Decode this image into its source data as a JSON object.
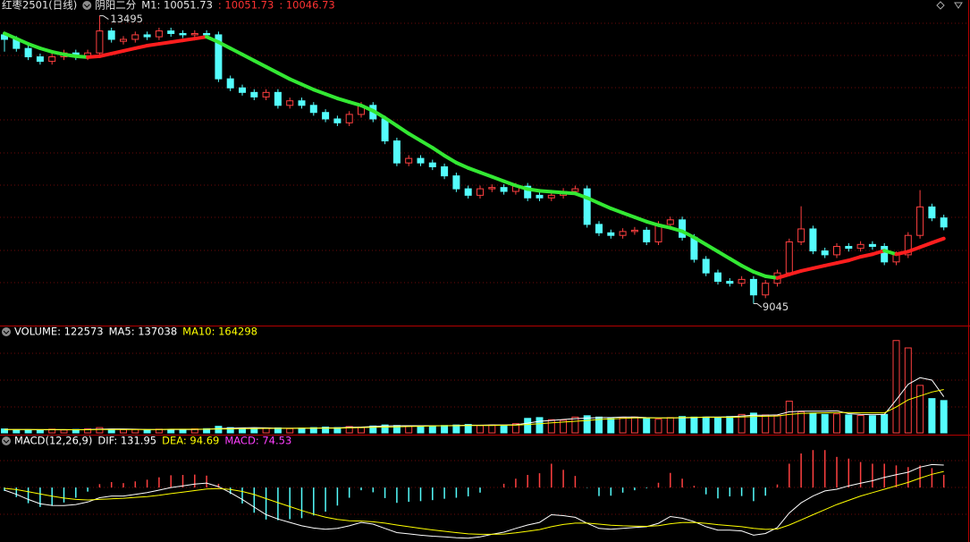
{
  "header": {
    "symbol": "红枣2501(日线)",
    "indicator": "阴阳二分",
    "m1": "M1: 10051.73",
    "value_a": ": 10051.73",
    "value_b": ": 10046.73"
  },
  "chart_data": [
    {
      "type": "candlestick",
      "open": [
        13200,
        13130,
        12990,
        12860,
        12790,
        12860,
        12920,
        12860,
        12920,
        13260,
        13100,
        13130,
        13200,
        13170,
        13260,
        13220,
        13200,
        13220,
        13200,
        12520,
        12380,
        12310,
        12240,
        12310,
        12110,
        12180,
        12110,
        12000,
        11900,
        11840,
        11970,
        12110,
        11900,
        11560,
        11220,
        11290,
        11220,
        11160,
        11020,
        10820,
        10720,
        10820,
        10840,
        10780,
        10860,
        10720,
        10680,
        10720,
        10780,
        10820,
        10270,
        10140,
        10100,
        10160,
        10180,
        10000,
        10270,
        10340,
        10070,
        9730,
        9520,
        9390,
        9360,
        9420,
        9180,
        9360,
        9520,
        10000,
        10200,
        9860,
        9800,
        9930,
        9900,
        9960,
        9930,
        9690,
        9800,
        10100,
        10540,
        10370
      ],
      "high": [
        13250,
        13180,
        13040,
        12910,
        12910,
        12970,
        12970,
        12970,
        13495,
        13310,
        13180,
        13250,
        13250,
        13310,
        13310,
        13270,
        13270,
        13270,
        13250,
        12570,
        12430,
        12360,
        12360,
        12360,
        12230,
        12230,
        12160,
        12050,
        11950,
        12020,
        12160,
        12160,
        11950,
        11610,
        11340,
        11340,
        11270,
        11210,
        11070,
        10870,
        10870,
        10890,
        10890,
        10910,
        10910,
        10770,
        10770,
        10830,
        10870,
        10870,
        10320,
        10190,
        10210,
        10230,
        10230,
        10320,
        10390,
        10390,
        10120,
        9780,
        9570,
        9440,
        9470,
        9470,
        9410,
        9570,
        10050,
        10550,
        10250,
        9910,
        9980,
        9980,
        10010,
        10010,
        9980,
        9850,
        10150,
        10800,
        10590,
        10420
      ],
      "low": [
        12940,
        12940,
        12810,
        12740,
        12740,
        12810,
        12810,
        12810,
        12870,
        13080,
        13050,
        13080,
        13120,
        13120,
        13170,
        13150,
        13150,
        13150,
        12470,
        12330,
        12260,
        12190,
        12190,
        12060,
        12060,
        12060,
        11950,
        11850,
        11790,
        11790,
        11920,
        11850,
        11510,
        11170,
        11170,
        11170,
        11110,
        10970,
        10770,
        10670,
        10670,
        10770,
        10730,
        10730,
        10630,
        10630,
        10630,
        10670,
        10730,
        10220,
        10090,
        10050,
        10050,
        10110,
        9950,
        9950,
        10220,
        10020,
        9680,
        9470,
        9340,
        9310,
        9310,
        9045,
        9130,
        9310,
        9470,
        9950,
        9810,
        9750,
        9750,
        9850,
        9850,
        9880,
        9640,
        9640,
        9750,
        10050,
        10320,
        10180
      ],
      "close": [
        13130,
        12990,
        12860,
        12790,
        12860,
        12920,
        12860,
        12920,
        13260,
        13130,
        13130,
        13200,
        13170,
        13260,
        13220,
        13200,
        13220,
        13200,
        12520,
        12380,
        12310,
        12240,
        12310,
        12110,
        12180,
        12110,
        12000,
        11900,
        11840,
        11970,
        12110,
        11900,
        11560,
        11220,
        11290,
        11220,
        11160,
        11020,
        10820,
        10720,
        10820,
        10840,
        10780,
        10860,
        10680,
        10680,
        10720,
        10780,
        10820,
        10270,
        10140,
        10100,
        10160,
        10180,
        10000,
        10270,
        10340,
        10070,
        9730,
        9520,
        9390,
        9360,
        9420,
        9180,
        9360,
        9520,
        10000,
        10200,
        9860,
        9800,
        9930,
        9900,
        9960,
        9930,
        9690,
        9800,
        10100,
        10540,
        10370,
        10230
      ],
      "up_color": "#ff4040",
      "down_color": "#54fcfc",
      "ma_values": [
        13223,
        13141,
        13060,
        12992,
        12937,
        12897,
        12869,
        12856,
        12869,
        12910,
        12951,
        12992,
        13033,
        13060,
        13087,
        13114,
        13141,
        13169,
        13087,
        12992,
        12897,
        12801,
        12706,
        12611,
        12516,
        12434,
        12353,
        12285,
        12217,
        12162,
        12108,
        12026,
        11917,
        11795,
        11673,
        11564,
        11455,
        11333,
        11224,
        11142,
        11074,
        11006,
        10938,
        10870,
        10816,
        10789,
        10775,
        10761,
        10748,
        10680,
        10598,
        10517,
        10449,
        10381,
        10313,
        10258,
        10217,
        10163,
        10068,
        9959,
        9850,
        9741,
        9633,
        9537,
        9469,
        9442,
        9497,
        9551,
        9592,
        9633,
        9673,
        9714,
        9769,
        9809,
        9864,
        9809,
        9850,
        9918,
        9986,
        10051.73
      ],
      "ma_up_color": "#ff1e1e",
      "ma_down_color": "#33e833",
      "max_label": 13495,
      "min_label": 9045,
      "ylim": [
        8900,
        13600
      ],
      "grid": true
    },
    {
      "type": "volume",
      "title": "VOLUME: 122573",
      "values": [
        15000,
        12000,
        10000,
        12000,
        14000,
        11000,
        13000,
        15000,
        20000,
        14000,
        12000,
        13000,
        12000,
        14000,
        13000,
        12000,
        15000,
        16000,
        25000,
        20000,
        18000,
        16000,
        17000,
        19000,
        16000,
        18000,
        20000,
        22000,
        20000,
        24000,
        22000,
        26000,
        30000,
        28000,
        25000,
        26000,
        27000,
        28000,
        30000,
        32000,
        28000,
        30000,
        29000,
        35000,
        55000,
        58000,
        50000,
        48000,
        60000,
        65000,
        60000,
        55000,
        58000,
        60000,
        55000,
        52000,
        58000,
        62000,
        60000,
        60000,
        58000,
        62000,
        70000,
        75000,
        68000,
        66000,
        120000,
        80000,
        75000,
        70000,
        72000,
        68000,
        66000,
        65000,
        70000,
        350000,
        322000,
        180000,
        130000,
        122573
      ],
      "series": [
        {
          "name": "MA5: 137038",
          "color": "#ffffff",
          "values": [
            13000,
            13000,
            13000,
            12000,
            12000,
            12000,
            12000,
            13000,
            14000,
            15000,
            15000,
            14000,
            13000,
            13000,
            13000,
            13000,
            13000,
            14000,
            16000,
            18000,
            19000,
            20000,
            19000,
            18000,
            18000,
            18000,
            18000,
            19000,
            19000,
            21000,
            22000,
            24000,
            26000,
            27000,
            27000,
            27000,
            27000,
            27000,
            28000,
            29000,
            29000,
            30000,
            30000,
            31000,
            37000,
            44000,
            47000,
            51000,
            54000,
            56000,
            58000,
            58000,
            60000,
            60000,
            58000,
            57000,
            57000,
            57000,
            58000,
            60000,
            60000,
            61000,
            64000,
            67000,
            67000,
            68000,
            80000,
            82000,
            82000,
            82000,
            84000,
            73000,
            70000,
            69000,
            70000,
            125000,
            184000,
            209000,
            200000,
            137038
          ]
        },
        {
          "name": "MA10: 164298",
          "color": "#ffff00",
          "values": [
            13000,
            13000,
            13000,
            13000,
            13000,
            13000,
            12000,
            12000,
            13000,
            13000,
            13000,
            13000,
            13000,
            13000,
            14000,
            14000,
            14000,
            14000,
            15000,
            15000,
            16000,
            16000,
            17000,
            17000,
            17000,
            18000,
            18000,
            18000,
            18000,
            19000,
            20000,
            21000,
            22000,
            23000,
            24000,
            25000,
            26000,
            27000,
            27000,
            28000,
            28000,
            28000,
            29000,
            29000,
            32000,
            35000,
            38000,
            41000,
            44000,
            47000,
            51000,
            53000,
            55000,
            57000,
            57000,
            57000,
            57000,
            58000,
            59000,
            59000,
            59000,
            59000,
            60000,
            62000,
            63000,
            64000,
            70000,
            74000,
            75000,
            76000,
            77000,
            77000,
            76000,
            76000,
            76000,
            98000,
            125000,
            140000,
            155000,
            164298
          ]
        }
      ],
      "ylim": [
        0,
        400000
      ],
      "grid": true
    },
    {
      "type": "macd",
      "title": "MACD(12,26,9)",
      "values": [
        -20,
        -56,
        -92,
        -114,
        -108,
        -88,
        -60,
        -24,
        20,
        32,
        26,
        36,
        46,
        60,
        72,
        74,
        76,
        70,
        22,
        -38,
        -94,
        -148,
        -188,
        -192,
        -186,
        -180,
        -164,
        -142,
        -106,
        -60,
        -16,
        -28,
        -62,
        -90,
        -84,
        -80,
        -74,
        -66,
        -60,
        -52,
        -30,
        0,
        22,
        52,
        74,
        84,
        140,
        104,
        68,
        -2,
        -50,
        -48,
        -30,
        -16,
        -4,
        28,
        86,
        52,
        10,
        -40,
        -64,
        -52,
        -50,
        -80,
        -48,
        18,
        140,
        200,
        220,
        220,
        180,
        170,
        150,
        140,
        140,
        130,
        120,
        130,
        114,
        74.53
      ],
      "macd_label": "MACD: 74.53",
      "macd_label_color": "#ff40ff",
      "series": [
        {
          "name": "DIF: 131.95",
          "color": "#ffffff",
          "values": [
            -15,
            -40,
            -70,
            -95,
            -105,
            -106,
            -100,
            -85,
            -60,
            -50,
            -50,
            -40,
            -30,
            -15,
            0,
            10,
            20,
            26,
            5,
            -30,
            -70,
            -115,
            -159,
            -185,
            -205,
            -225,
            -238,
            -245,
            -240,
            -225,
            -205,
            -215,
            -240,
            -265,
            -272,
            -280,
            -286,
            -290,
            -295,
            -298,
            -290,
            -275,
            -262,
            -240,
            -220,
            -205,
            -160,
            -165,
            -175,
            -210,
            -240,
            -245,
            -240,
            -235,
            -230,
            -210,
            -170,
            -180,
            -200,
            -230,
            -250,
            -250,
            -255,
            -280,
            -270,
            -235,
            -150,
            -90,
            -50,
            -20,
            -10,
            10,
            25,
            40,
            60,
            75,
            90,
            120,
            135,
            131.95
          ]
        },
        {
          "name": "DEA: 94.69",
          "color": "#ffff00",
          "values": [
            -5,
            -12,
            -24,
            -38,
            -51,
            -62,
            -70,
            -73,
            -70,
            -66,
            -63,
            -58,
            -53,
            -45,
            -36,
            -27,
            -18,
            -9,
            -6,
            -11,
            -23,
            -41,
            -65,
            -89,
            -112,
            -135,
            -156,
            -174,
            -187,
            -195,
            -197,
            -201,
            -209,
            -220,
            -230,
            -240,
            -249,
            -257,
            -265,
            -272,
            -275,
            -275,
            -273,
            -266,
            -257,
            -247,
            -230,
            -217,
            -209,
            -209,
            -215,
            -221,
            -225,
            -227,
            -228,
            -224,
            -213,
            -206,
            -205,
            -210,
            -218,
            -224,
            -230,
            -240,
            -246,
            -244,
            -220,
            -190,
            -160,
            -130,
            -100,
            -75,
            -50,
            -30,
            -10,
            10,
            30,
            55,
            78,
            94.69
          ]
        }
      ],
      "up_color": "#ff4040",
      "down_color": "#54fcfc",
      "ylim": [
        -320,
        300
      ],
      "grid": true
    }
  ]
}
